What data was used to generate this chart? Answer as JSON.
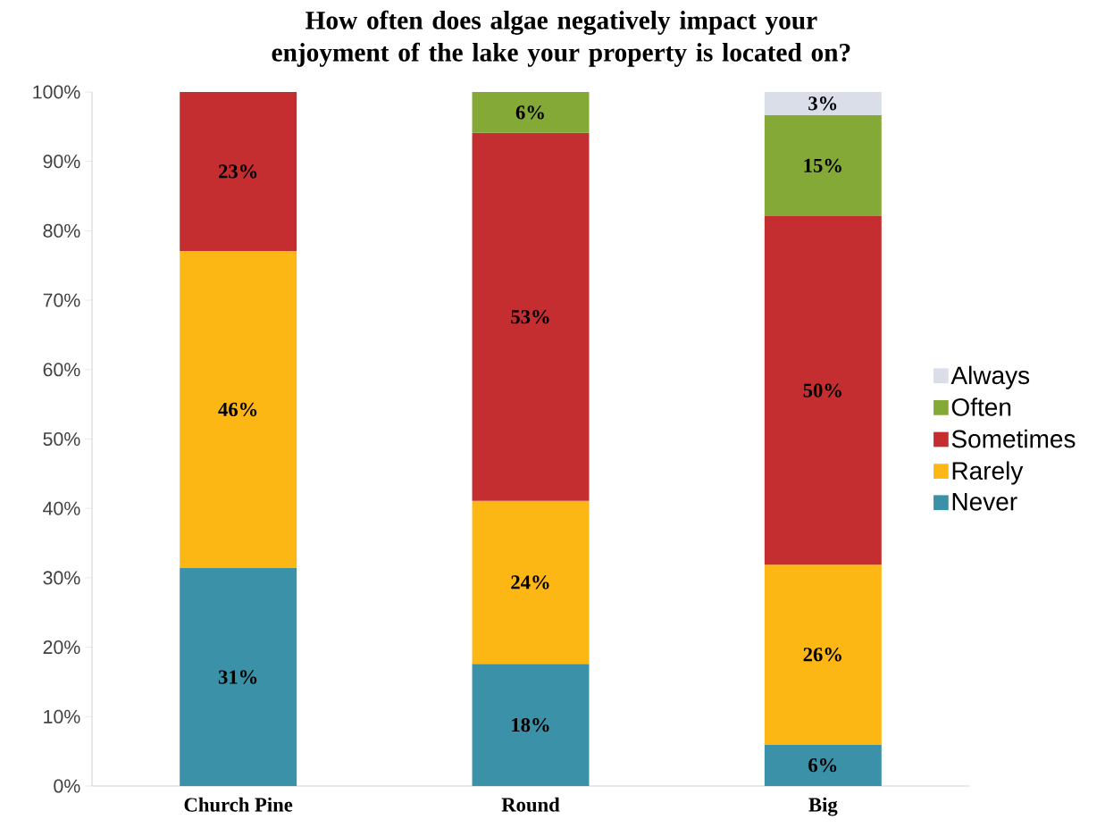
{
  "chart_data": {
    "type": "bar",
    "stacked": true,
    "title": "How often does algae negatively impact your enjoyment of the lake your property is located on?",
    "categories": [
      "Church Pine",
      "Round",
      "Big"
    ],
    "ylim": [
      0,
      100
    ],
    "yticks": [
      {
        "value": 0,
        "label": "0%"
      },
      {
        "value": 10,
        "label": "10%"
      },
      {
        "value": 20,
        "label": "20%"
      },
      {
        "value": 30,
        "label": "30%"
      },
      {
        "value": 40,
        "label": "40%"
      },
      {
        "value": 50,
        "label": "50%"
      },
      {
        "value": 60,
        "label": "60%"
      },
      {
        "value": 70,
        "label": "70%"
      },
      {
        "value": 80,
        "label": "80%"
      },
      {
        "value": 90,
        "label": "90%"
      },
      {
        "value": 100,
        "label": "100%"
      }
    ],
    "legend": "right",
    "grid": false,
    "series": [
      {
        "name": "Never",
        "color": "#3a91a8",
        "values": [
          31.4,
          17.6,
          6.0
        ],
        "value_labels": [
          "31%",
          "18%",
          "6%"
        ]
      },
      {
        "name": "Rarely",
        "color": "#fdb714",
        "values": [
          45.7,
          23.5,
          25.9
        ],
        "value_labels": [
          "46%",
          "24%",
          "26%"
        ]
      },
      {
        "name": "Sometimes",
        "color": "#c42e30",
        "values": [
          22.9,
          53.0,
          50.2
        ],
        "value_labels": [
          "23%",
          "53%",
          "50%"
        ]
      },
      {
        "name": "Often",
        "color": "#85a937",
        "values": [
          null,
          5.9,
          14.6
        ],
        "value_labels": [
          null,
          "6%",
          "15%"
        ]
      },
      {
        "name": "Always",
        "color": "#d9dee9",
        "values": [
          null,
          null,
          3.3
        ],
        "value_labels": [
          null,
          null,
          "3%"
        ]
      }
    ]
  }
}
